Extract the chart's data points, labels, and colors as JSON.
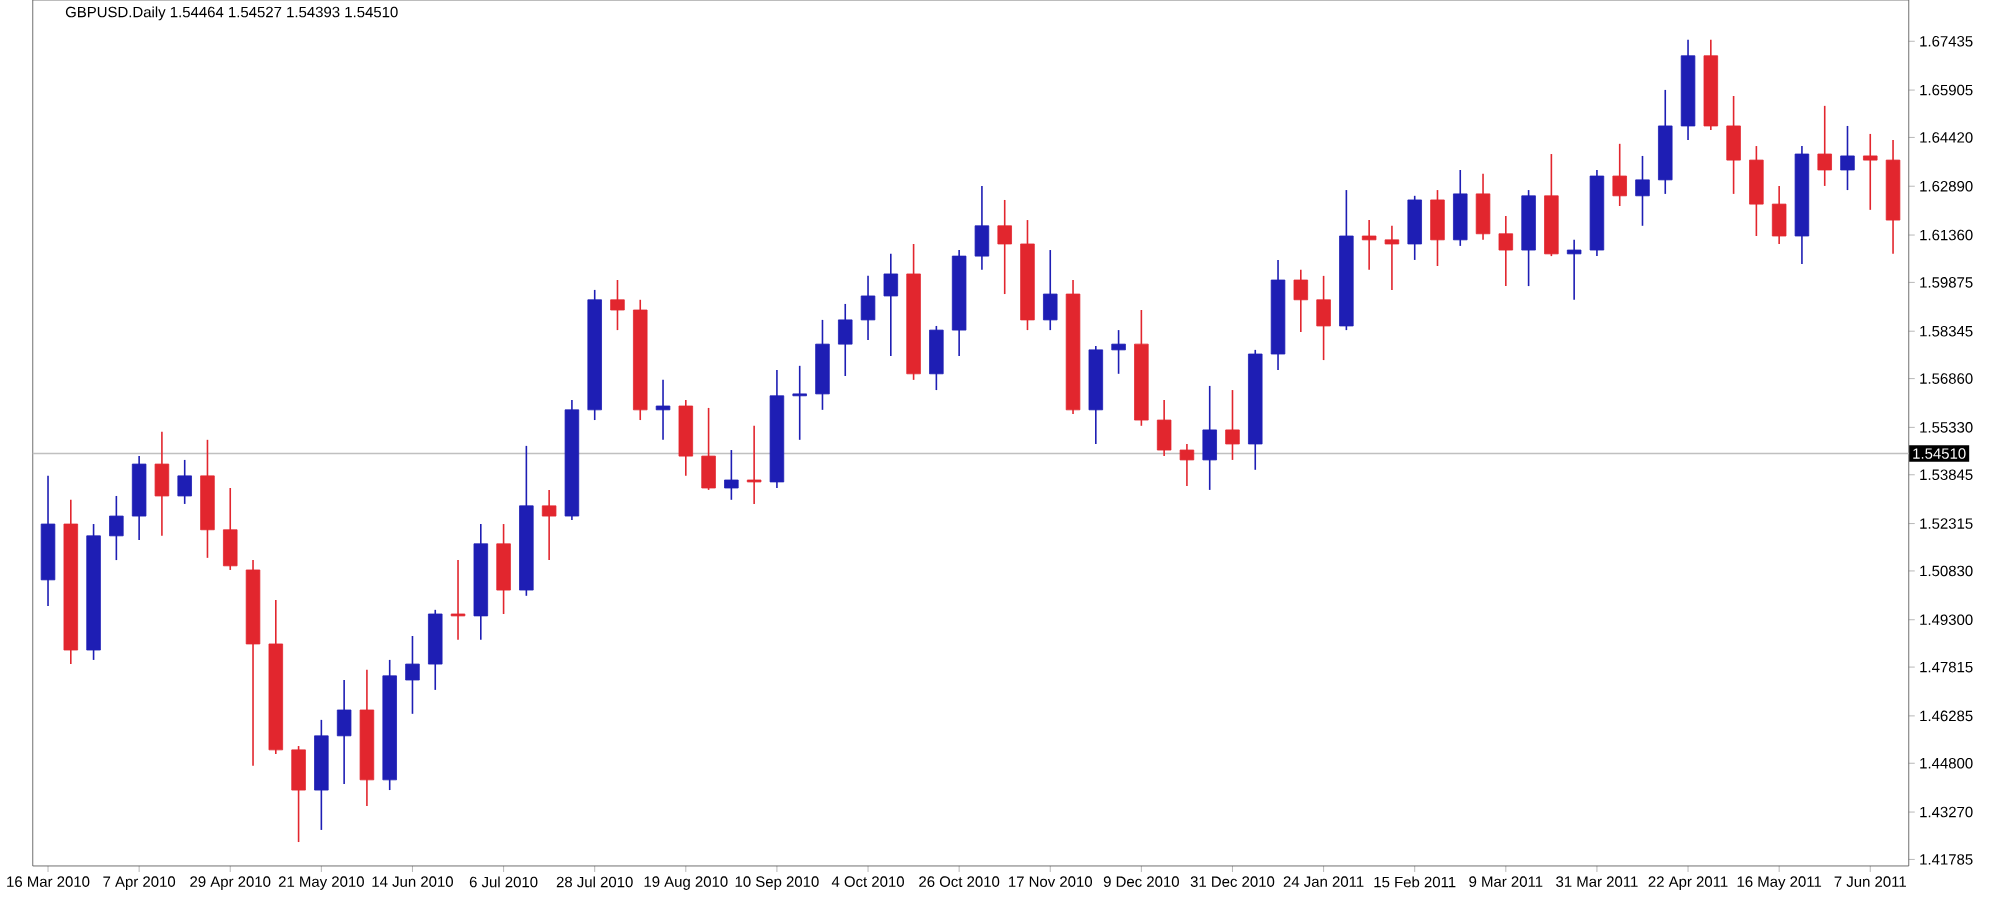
{
  "chart_data": {
    "type": "candlestick",
    "title": "GBPUSD.Daily  1.54464 1.54527 1.54393 1.54510",
    "categories": [
      "16 Mar 2010",
      null,
      null,
      null,
      "7 Apr 2010",
      null,
      null,
      null,
      "29 Apr 2010",
      null,
      null,
      null,
      "21 May 2010",
      null,
      null,
      null,
      "14 Jun 2010",
      null,
      null,
      null,
      "6 Jul 2010",
      null,
      null,
      null,
      "28 Jul 2010",
      null,
      null,
      null,
      "19 Aug 2010",
      null,
      null,
      null,
      "10 Sep 2010",
      null,
      null,
      null,
      "4 Oct 2010",
      null,
      null,
      null,
      "26 Oct 2010",
      null,
      null,
      null,
      "17 Nov 2010",
      null,
      null,
      null,
      "9 Dec 2010",
      null,
      null,
      null,
      "31 Dec 2010",
      null,
      null,
      null,
      "24 Jan 2011",
      null,
      null,
      null,
      "15 Feb 2011",
      null,
      null,
      null,
      "9 Mar 2011",
      null,
      null,
      null,
      "31 Mar 2011",
      null,
      null,
      null,
      "22 Apr 2011",
      null,
      null,
      null,
      "16 May 2011",
      null,
      null,
      null,
      "7 Jun 2011",
      null
    ],
    "ohlc": [
      [
        1.5055,
        1.5381,
        1.4973,
        1.523
      ],
      [
        1.523,
        1.5306,
        1.4791,
        1.4835
      ],
      [
        1.4835,
        1.523,
        1.4804,
        1.5193
      ],
      [
        1.5193,
        1.5318,
        1.5117,
        1.5255
      ],
      [
        1.5255,
        1.5443,
        1.518,
        1.5418
      ],
      [
        1.5418,
        1.5519,
        1.5193,
        1.5318
      ],
      [
        1.5318,
        1.5431,
        1.5293,
        1.5381
      ],
      [
        1.5381,
        1.5494,
        1.5124,
        1.5212
      ],
      [
        1.5212,
        1.5343,
        1.5086,
        1.5099
      ],
      [
        1.5086,
        1.5117,
        1.4472,
        1.4854
      ],
      [
        1.4854,
        1.4992,
        1.4509,
        1.4522
      ],
      [
        1.4522,
        1.4534,
        1.4233,
        1.4396
      ],
      [
        1.4396,
        1.4616,
        1.4271,
        1.4566
      ],
      [
        1.4566,
        1.4741,
        1.4415,
        1.4647
      ],
      [
        1.4647,
        1.4773,
        1.4346,
        1.4428
      ],
      [
        1.4428,
        1.4804,
        1.4396,
        1.4754
      ],
      [
        1.4741,
        1.4879,
        1.4635,
        1.4791
      ],
      [
        1.4791,
        1.4961,
        1.471,
        1.4948
      ],
      [
        1.4948,
        1.5117,
        1.4867,
        1.4942
      ],
      [
        1.4942,
        1.523,
        1.4867,
        1.5168
      ],
      [
        1.5168,
        1.523,
        1.4948,
        1.5023
      ],
      [
        1.5023,
        1.5475,
        1.5005,
        1.5287
      ],
      [
        1.5287,
        1.5337,
        1.5117,
        1.5255
      ],
      [
        1.5255,
        1.5619,
        1.5243,
        1.5588
      ],
      [
        1.5588,
        1.5964,
        1.5556,
        1.5933
      ],
      [
        1.5933,
        1.5995,
        1.5838,
        1.5901
      ],
      [
        1.5901,
        1.5933,
        1.5556,
        1.5588
      ],
      [
        1.5588,
        1.5682,
        1.5494,
        1.56
      ],
      [
        1.56,
        1.5619,
        1.5381,
        1.5443
      ],
      [
        1.5443,
        1.5594,
        1.5337,
        1.5343
      ],
      [
        1.5343,
        1.5462,
        1.5306,
        1.5368
      ],
      [
        1.5368,
        1.5538,
        1.5293,
        1.5362
      ],
      [
        1.5362,
        1.5713,
        1.5343,
        1.5632
      ],
      [
        1.5632,
        1.5726,
        1.5494,
        1.5638
      ],
      [
        1.5638,
        1.587,
        1.5588,
        1.5794
      ],
      [
        1.5794,
        1.592,
        1.5694,
        1.587
      ],
      [
        1.587,
        1.6008,
        1.5807,
        1.5945
      ],
      [
        1.5945,
        1.6077,
        1.5757,
        1.6014
      ],
      [
        1.6014,
        1.6108,
        1.5682,
        1.5701
      ],
      [
        1.5701,
        1.5851,
        1.565,
        1.5838
      ],
      [
        1.5838,
        1.6089,
        1.5757,
        1.607
      ],
      [
        1.607,
        1.629,
        1.6027,
        1.6165
      ],
      [
        1.6165,
        1.6246,
        1.5951,
        1.6108
      ],
      [
        1.6108,
        1.6183,
        1.5838,
        1.587
      ],
      [
        1.587,
        1.6089,
        1.5838,
        1.5951
      ],
      [
        1.5951,
        1.5995,
        1.5575,
        1.5588
      ],
      [
        1.5588,
        1.5788,
        1.5481,
        1.5776
      ],
      [
        1.5776,
        1.5838,
        1.5701,
        1.5794
      ],
      [
        1.5794,
        1.5901,
        1.5538,
        1.5556
      ],
      [
        1.5556,
        1.5619,
        1.5443,
        1.5462
      ],
      [
        1.5462,
        1.5481,
        1.5349,
        1.5431
      ],
      [
        1.5431,
        1.5663,
        1.5337,
        1.5525
      ],
      [
        1.5525,
        1.565,
        1.5431,
        1.5481
      ],
      [
        1.5481,
        1.5776,
        1.54,
        1.5763
      ],
      [
        1.5763,
        1.6058,
        1.5713,
        1.5995
      ],
      [
        1.5995,
        1.6027,
        1.5832,
        1.5933
      ],
      [
        1.5933,
        1.6008,
        1.5744,
        1.5851
      ],
      [
        1.5851,
        1.6277,
        1.5838,
        1.6133
      ],
      [
        1.6133,
        1.6183,
        1.6027,
        1.6121
      ],
      [
        1.6121,
        1.6165,
        1.5964,
        1.6108
      ],
      [
        1.6108,
        1.6259,
        1.6058,
        1.6246
      ],
      [
        1.6246,
        1.6277,
        1.6039,
        1.6121
      ],
      [
        1.6121,
        1.634,
        1.6102,
        1.6265
      ],
      [
        1.6265,
        1.6328,
        1.6121,
        1.614
      ],
      [
        1.614,
        1.6196,
        1.5976,
        1.6089
      ],
      [
        1.6089,
        1.6277,
        1.5976,
        1.6259
      ],
      [
        1.6259,
        1.639,
        1.607,
        1.6077
      ],
      [
        1.6077,
        1.6121,
        1.5933,
        1.6089
      ],
      [
        1.6089,
        1.634,
        1.607,
        1.6321
      ],
      [
        1.6321,
        1.6422,
        1.6227,
        1.6259
      ],
      [
        1.6259,
        1.6384,
        1.6165,
        1.6309
      ],
      [
        1.6309,
        1.6591,
        1.6265,
        1.6478
      ],
      [
        1.6478,
        1.6748,
        1.6434,
        1.6698
      ],
      [
        1.6698,
        1.6748,
        1.6465,
        1.6478
      ],
      [
        1.6478,
        1.6572,
        1.6265,
        1.6371
      ],
      [
        1.6371,
        1.6415,
        1.6133,
        1.6233
      ],
      [
        1.6233,
        1.629,
        1.6108,
        1.6133
      ],
      [
        1.6133,
        1.6415,
        1.6045,
        1.639
      ],
      [
        1.639,
        1.6541,
        1.629,
        1.634
      ],
      [
        1.634,
        1.6478,
        1.6277,
        1.6384
      ],
      [
        1.6384,
        1.6453,
        1.6215,
        1.6371
      ],
      [
        1.6371,
        1.6434,
        1.6077,
        1.6183
      ]
    ],
    "colors": [
      "#1e1eb4",
      "#e2262e",
      "#1e1eb4",
      "#1e1eb4",
      "#1e1eb4",
      "#e2262e",
      "#1e1eb4",
      "#e2262e",
      "#e2262e",
      "#e2262e",
      "#e2262e",
      "#e2262e",
      "#1e1eb4",
      "#1e1eb4",
      "#e2262e",
      "#1e1eb4",
      "#1e1eb4",
      "#1e1eb4",
      "#e2262e",
      "#1e1eb4",
      "#e2262e",
      "#1e1eb4",
      "#e2262e",
      "#1e1eb4",
      "#1e1eb4",
      "#e2262e",
      "#e2262e",
      "#1e1eb4",
      "#e2262e",
      "#e2262e",
      "#1e1eb4",
      "#e2262e",
      "#1e1eb4",
      "#1e1eb4",
      "#1e1eb4",
      "#1e1eb4",
      "#1e1eb4",
      "#1e1eb4",
      "#e2262e",
      "#1e1eb4",
      "#1e1eb4",
      "#1e1eb4",
      "#e2262e",
      "#e2262e",
      "#1e1eb4",
      "#e2262e",
      "#1e1eb4",
      "#1e1eb4",
      "#e2262e",
      "#e2262e",
      "#e2262e",
      "#1e1eb4",
      "#e2262e",
      "#1e1eb4",
      "#1e1eb4",
      "#e2262e",
      "#e2262e",
      "#1e1eb4",
      "#e2262e",
      "#e2262e",
      "#1e1eb4",
      "#e2262e",
      "#1e1eb4",
      "#e2262e",
      "#e2262e",
      "#1e1eb4",
      "#e2262e",
      "#1e1eb4",
      "#1e1eb4",
      "#e2262e",
      "#1e1eb4",
      "#1e1eb4",
      "#1e1eb4",
      "#e2262e",
      "#e2262e",
      "#e2262e",
      "#e2262e",
      "#1e1eb4",
      "#e2262e",
      "#1e1eb4",
      "#e2262e",
      "#e2262e"
    ],
    "ylim": [
      1.4158,
      1.6873
    ],
    "yticks": [
      1.67435,
      1.65905,
      {
        "value": 1.6442,
        "label": "1.64420"
      },
      {
        "value": 1.6289,
        "label": "1.62890"
      },
      {
        "value": 1.6136,
        "label": "1.61360"
      },
      1.59875,
      1.58345,
      {
        "value": 1.5686,
        "label": "1.56860"
      },
      {
        "value": 1.5533,
        "label": "1.55330"
      },
      1.53845,
      1.52315,
      {
        "value": 1.5083,
        "label": "1.50830"
      },
      {
        "value": 1.493,
        "label": "1.49300"
      },
      1.47815,
      1.46285,
      {
        "value": 1.448,
        "label": "1.44800"
      },
      {
        "value": 1.4327,
        "label": "1.43270"
      },
      1.41785
    ],
    "ref_lines": [
      {
        "axis": "y",
        "value": 1.5451,
        "label": "1.54510",
        "color": "#c0c0c0"
      }
    ]
  }
}
